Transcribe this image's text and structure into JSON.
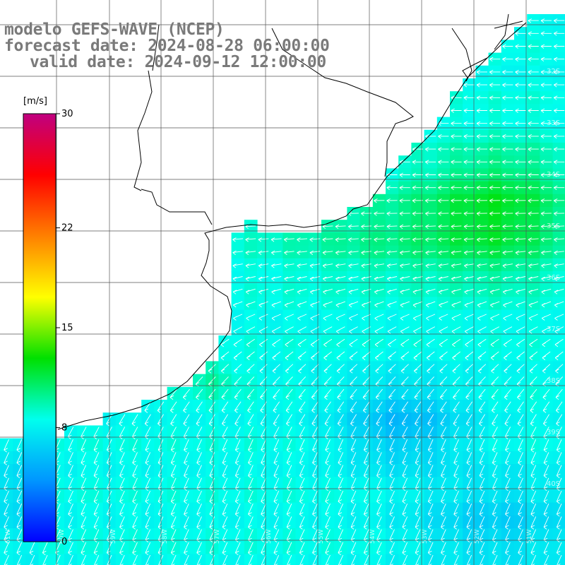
{
  "title": {
    "line1": "modelo GEFS-WAVE (NCEP)",
    "line2": "forecast date: 2024-08-28 06:00:00",
    "line3": "valid date: 2024-09-12 12:00:00"
  },
  "colorbar": {
    "unit": "[m/s]",
    "ticks": [
      {
        "value": 30,
        "label": "30"
      },
      {
        "value": 22,
        "label": "22"
      },
      {
        "value": 15,
        "label": "15"
      },
      {
        "value": 8,
        "label": "8"
      },
      {
        "value": 0,
        "label": "0"
      }
    ],
    "range": [
      0,
      30
    ],
    "stops": [
      "#0000ff",
      "#0096ff",
      "#00ffee",
      "#00e000",
      "#ffff00",
      "#ff8000",
      "#ff0000",
      "#c00080"
    ]
  },
  "map": {
    "lat_labels": [
      "32S",
      "33S",
      "34S",
      "35S",
      "36S",
      "37S",
      "38S",
      "39S",
      "40S"
    ],
    "lon_labels": [
      "61W",
      "60W",
      "59W",
      "58W",
      "57W",
      "56W",
      "55W",
      "54W",
      "53W",
      "52W",
      "51W"
    ],
    "field": "wind speed",
    "wind_direction": "from east / north-east"
  }
}
